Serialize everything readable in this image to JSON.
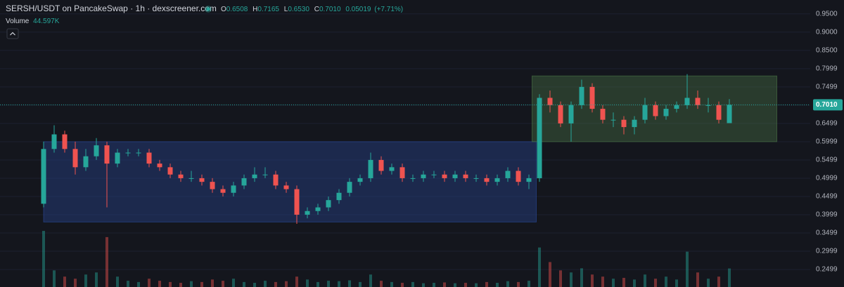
{
  "chart_data": {
    "type": "candlestick",
    "title": "SERSH/USDT on PancakeSwap · 1h · dexscreener.com",
    "ohlc_header": {
      "labels": [
        "O",
        "H",
        "L",
        "C"
      ],
      "values": [
        0.6508,
        0.7165,
        0.653,
        0.701
      ],
      "value_labels": [
        "0.6508",
        "0.7165",
        "0.6530",
        "0.7010"
      ]
    },
    "change": 0.05019,
    "change_pct": {
      "value": 7.71,
      "label": "(+7.71%)"
    },
    "volume_label": "Volume",
    "last_volume": {
      "value": 44597,
      "label": "44.597K"
    },
    "last_price": {
      "value": 0.701,
      "label": "0.7010"
    },
    "up_color": "#26a69a",
    "down_color": "#ef5350",
    "ylim": [
      0.202,
      0.988
    ],
    "yticks": [
      {
        "value": 0.95,
        "label": "0.9500"
      },
      {
        "value": 0.9,
        "label": "0.9000"
      },
      {
        "value": 0.85,
        "label": "0.8500"
      },
      {
        "value": 0.7999,
        "label": "0.7999"
      },
      {
        "value": 0.7499,
        "label": "0.7499"
      },
      {
        "value": 0.6999,
        "label": "0.6999"
      },
      {
        "value": 0.6499,
        "label": "0.6499"
      },
      {
        "value": 0.5999,
        "label": "0.5999"
      },
      {
        "value": 0.5499,
        "label": "0.5499"
      },
      {
        "value": 0.4999,
        "label": "0.4999"
      },
      {
        "value": 0.4499,
        "label": "0.4499"
      },
      {
        "value": 0.3999,
        "label": "0.3999"
      },
      {
        "value": 0.3499,
        "label": "0.3499"
      },
      {
        "value": 0.2999,
        "label": "0.2999"
      },
      {
        "value": 0.2499,
        "label": "0.2499"
      }
    ],
    "grid": true,
    "zones": [
      {
        "low": 0.38,
        "high": 0.6,
        "start": 0,
        "end": 46.7,
        "color": "#2a4a9c"
      },
      {
        "low": 0.6,
        "high": 0.78,
        "start": 46.3,
        "end": 69.5,
        "color": "#4c7846"
      }
    ],
    "open": [
      0.43,
      0.58,
      0.62,
      0.58,
      0.53,
      0.56,
      0.59,
      0.54,
      0.57,
      0.57,
      0.57,
      0.54,
      0.53,
      0.51,
      0.5,
      0.5,
      0.49,
      0.47,
      0.46,
      0.48,
      0.5,
      0.51,
      0.51,
      0.48,
      0.47,
      0.4,
      0.41,
      0.42,
      0.44,
      0.46,
      0.49,
      0.5,
      0.55,
      0.52,
      0.53,
      0.5,
      0.5,
      0.51,
      0.51,
      0.5,
      0.51,
      0.5,
      0.5,
      0.49,
      0.5,
      0.52,
      0.49,
      0.5,
      0.72,
      0.7,
      0.65,
      0.7,
      0.75,
      0.69,
      0.66,
      0.66,
      0.64,
      0.66,
      0.7,
      0.67,
      0.69,
      0.7,
      0.72,
      0.7,
      0.7,
      0.6508
    ],
    "high": [
      0.6,
      0.645,
      0.63,
      0.6,
      0.58,
      0.61,
      0.6,
      0.58,
      0.58,
      0.58,
      0.58,
      0.55,
      0.54,
      0.52,
      0.52,
      0.51,
      0.5,
      0.48,
      0.49,
      0.51,
      0.53,
      0.53,
      0.52,
      0.49,
      0.48,
      0.42,
      0.43,
      0.45,
      0.47,
      0.5,
      0.51,
      0.57,
      0.56,
      0.54,
      0.54,
      0.51,
      0.52,
      0.52,
      0.52,
      0.52,
      0.52,
      0.51,
      0.51,
      0.51,
      0.53,
      0.53,
      0.51,
      0.73,
      0.74,
      0.71,
      0.71,
      0.77,
      0.76,
      0.7,
      0.68,
      0.67,
      0.67,
      0.72,
      0.71,
      0.7,
      0.71,
      0.785,
      0.74,
      0.72,
      0.71,
      0.7165
    ],
    "low": [
      0.42,
      0.57,
      0.57,
      0.51,
      0.52,
      0.55,
      0.42,
      0.53,
      0.56,
      0.56,
      0.53,
      0.52,
      0.5,
      0.49,
      0.49,
      0.48,
      0.46,
      0.45,
      0.45,
      0.47,
      0.49,
      0.5,
      0.47,
      0.46,
      0.375,
      0.39,
      0.4,
      0.41,
      0.43,
      0.45,
      0.48,
      0.49,
      0.51,
      0.51,
      0.49,
      0.49,
      0.49,
      0.5,
      0.49,
      0.49,
      0.49,
      0.49,
      0.48,
      0.48,
      0.49,
      0.48,
      0.47,
      0.49,
      0.68,
      0.64,
      0.6,
      0.69,
      0.68,
      0.65,
      0.64,
      0.62,
      0.62,
      0.65,
      0.66,
      0.66,
      0.68,
      0.69,
      0.69,
      0.68,
      0.65,
      0.653
    ],
    "close": [
      0.58,
      0.62,
      0.58,
      0.53,
      0.56,
      0.59,
      0.54,
      0.57,
      0.57,
      0.57,
      0.54,
      0.53,
      0.51,
      0.5,
      0.5,
      0.49,
      0.47,
      0.46,
      0.48,
      0.5,
      0.51,
      0.51,
      0.48,
      0.47,
      0.4,
      0.41,
      0.42,
      0.44,
      0.46,
      0.49,
      0.5,
      0.55,
      0.52,
      0.53,
      0.5,
      0.5,
      0.51,
      0.51,
      0.5,
      0.51,
      0.5,
      0.5,
      0.49,
      0.5,
      0.52,
      0.49,
      0.5,
      0.72,
      0.7,
      0.65,
      0.7,
      0.75,
      0.69,
      0.66,
      0.66,
      0.64,
      0.66,
      0.7,
      0.67,
      0.69,
      0.7,
      0.72,
      0.7,
      0.7,
      0.66,
      0.701
    ],
    "volume": [
      135000,
      40000,
      25000,
      20000,
      30000,
      35000,
      120000,
      25000,
      15000,
      12000,
      20000,
      15000,
      12000,
      10000,
      14000,
      12000,
      18000,
      15000,
      20000,
      12000,
      10000,
      15000,
      12000,
      14000,
      25000,
      18000,
      12000,
      15000,
      14000,
      16000,
      12000,
      30000,
      15000,
      12000,
      10000,
      12000,
      9000,
      10000,
      11000,
      9000,
      10000,
      9000,
      12000,
      10000,
      14000,
      12000,
      15000,
      95000,
      60000,
      40000,
      35000,
      45000,
      30000,
      25000,
      20000,
      22000,
      18000,
      30000,
      20000,
      25000,
      18000,
      85000,
      35000,
      20000,
      25000,
      44597
    ]
  }
}
